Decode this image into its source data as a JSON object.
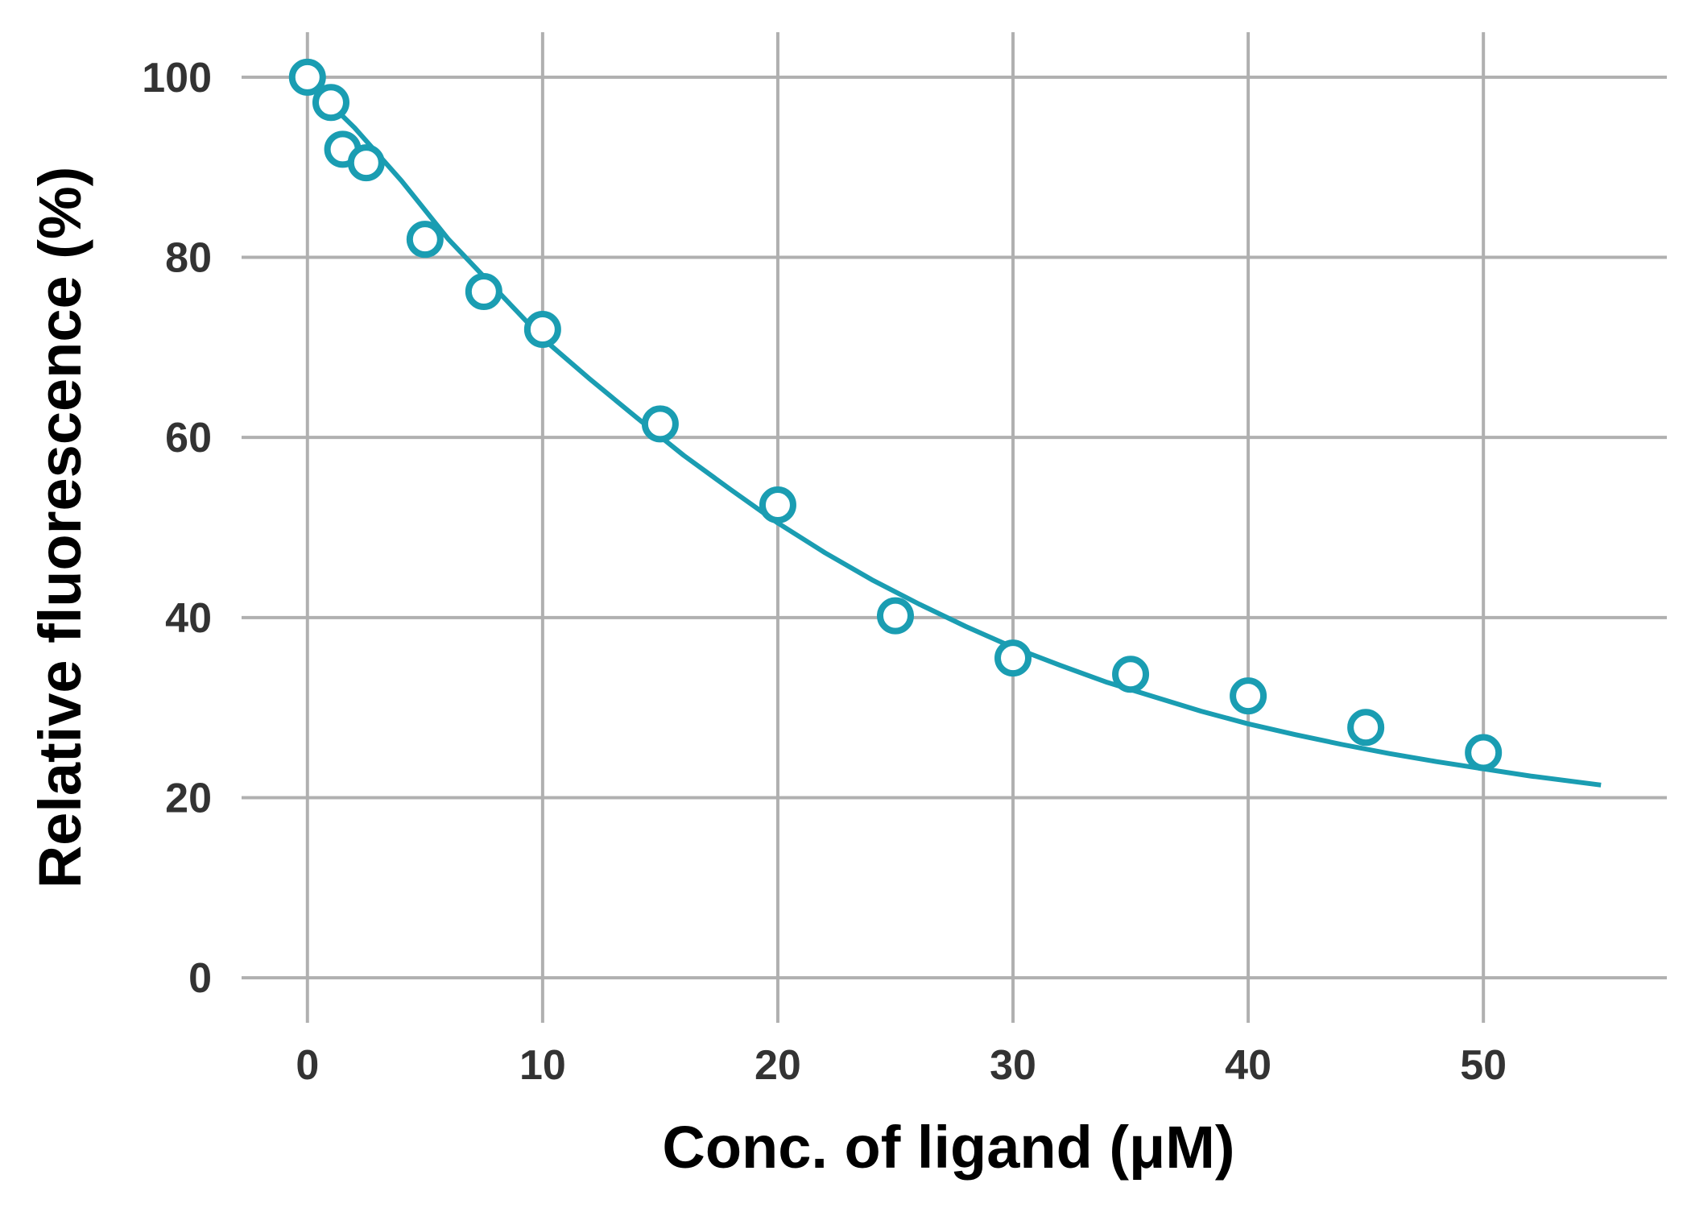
{
  "chart_data": {
    "type": "scatter",
    "xlabel": "Conc. of ligand (μM)",
    "ylabel": "Relative fluorescence (%)",
    "xlim": [
      -2.8,
      57.8
    ],
    "ylim": [
      -5,
      105
    ],
    "x_ticks": [
      0,
      10,
      20,
      30,
      40,
      50
    ],
    "y_ticks": [
      0,
      20,
      40,
      60,
      80,
      100
    ],
    "grid": true,
    "colors": {
      "series": "#1a9db2",
      "grid": "#b0b0b0",
      "tick_text": "#333333",
      "title_text": "#000000"
    },
    "series": [
      {
        "points": [
          {
            "x": 0,
            "y": 100
          },
          {
            "x": 1,
            "y": 97.2
          },
          {
            "x": 1.5,
            "y": 92
          },
          {
            "x": 2.5,
            "y": 90.5
          },
          {
            "x": 5,
            "y": 82
          },
          {
            "x": 7.5,
            "y": 76.2
          },
          {
            "x": 10,
            "y": 72
          },
          {
            "x": 15,
            "y": 61.5
          },
          {
            "x": 20,
            "y": 52.5
          },
          {
            "x": 25,
            "y": 40.2
          },
          {
            "x": 30,
            "y": 35.5
          },
          {
            "x": 35,
            "y": 33.7
          },
          {
            "x": 40,
            "y": 31.3
          },
          {
            "x": 45,
            "y": 27.8
          },
          {
            "x": 50,
            "y": 25
          }
        ]
      }
    ],
    "fit_curve": {
      "x": [
        0,
        2,
        4,
        6,
        8,
        10,
        12,
        14,
        16,
        18,
        20,
        22,
        24,
        26,
        28,
        30,
        32,
        34,
        36,
        38,
        40,
        42,
        44,
        46,
        48,
        50,
        52,
        55
      ],
      "y": [
        99.5,
        94.4,
        88.5,
        82.0,
        76.5,
        71.0,
        66.5,
        62.2,
        58.0,
        54.2,
        50.5,
        47.2,
        44.2,
        41.5,
        39.0,
        36.7,
        34.7,
        32.8,
        31.2,
        29.6,
        28.2,
        27.0,
        25.9,
        24.9,
        24.0,
        23.2,
        22.4,
        21.4
      ]
    }
  }
}
